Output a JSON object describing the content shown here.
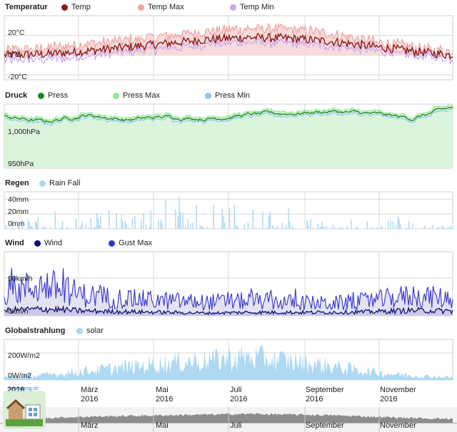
{
  "panels": [
    {
      "id": "temp",
      "title": "Temperatur",
      "legend": [
        {
          "name": "Temp",
          "color": "#8b1a1a"
        },
        {
          "name": "Temp Max",
          "color": "#f2a2a2"
        },
        {
          "name": "Temp Min",
          "color": "#c9a6ef"
        }
      ],
      "yticks": [
        "20°C",
        "0°C",
        "-20°C"
      ]
    },
    {
      "id": "druck",
      "title": "Druck",
      "legend": [
        {
          "name": "Press",
          "color": "#1c8a1c"
        },
        {
          "name": "Press Max",
          "color": "#8fe88f"
        },
        {
          "name": "Press Min",
          "color": "#8fc6e8"
        }
      ],
      "yticks": [
        "1,000hPa",
        "950hPa"
      ]
    },
    {
      "id": "regen",
      "title": "Regen",
      "legend": [
        {
          "name": "Rain Fall",
          "color": "#a9d7f2"
        }
      ],
      "yticks": [
        "40mm",
        "20mm",
        "0mm"
      ]
    },
    {
      "id": "wind",
      "title": "Wind",
      "legend": [
        {
          "name": "Wind",
          "color": "#101070"
        },
        {
          "name": "Gust Max",
          "color": "#3434c8"
        }
      ],
      "yticks": [
        "50km/h",
        "0km/h"
      ]
    },
    {
      "id": "solar",
      "title": "Globalstrahlung",
      "legend": [
        {
          "name": "solar",
          "color": "#a9d7f2"
        }
      ],
      "yticks": [
        "200W/m2",
        "0W/m2"
      ]
    }
  ],
  "xaxis": {
    "labels": [
      {
        "l1": "2016",
        "l2": "",
        "bold": true
      },
      {
        "l1": "März",
        "l2": "2016",
        "bold": false
      },
      {
        "l1": "Mai",
        "l2": "2016",
        "bold": false
      },
      {
        "l1": "Juli",
        "l2": "2016",
        "bold": false
      },
      {
        "l1": "September",
        "l2": "2016",
        "bold": false
      },
      {
        "l1": "November",
        "l2": "2016",
        "bold": false
      }
    ],
    "navigator": [
      "2016",
      "März",
      "Mai",
      "Juli",
      "September",
      "November"
    ]
  },
  "logo_text": "www.ursg.ch",
  "chart_data": [
    {
      "type": "area",
      "title": "Temperatur",
      "x_range": [
        "2016-01-01",
        "2016-12-31"
      ],
      "ylim": [
        -25,
        40
      ],
      "series": [
        {
          "name": "Temp",
          "monthly": [
            0,
            1,
            4,
            8,
            12,
            16,
            18,
            17,
            14,
            9,
            4,
            0
          ]
        },
        {
          "name": "Temp Max",
          "monthly": [
            5,
            7,
            11,
            15,
            20,
            24,
            27,
            26,
            22,
            14,
            8,
            4
          ]
        },
        {
          "name": "Temp Min",
          "monthly": [
            -5,
            -4,
            -1,
            3,
            7,
            11,
            13,
            12,
            9,
            5,
            0,
            -4
          ]
        }
      ]
    },
    {
      "type": "area",
      "title": "Druck",
      "x_range": [
        "2016-01-01",
        "2016-12-31"
      ],
      "ylim": [
        940,
        1030
      ],
      "series": [
        {
          "name": "Press",
          "monthly": [
            1012,
            1005,
            1015,
            1008,
            1012,
            1010,
            1015,
            1017,
            1020,
            1016,
            1010,
            1025
          ]
        },
        {
          "name": "Press Max",
          "monthly": [
            1015,
            1010,
            1018,
            1011,
            1014,
            1012,
            1017,
            1019,
            1022,
            1019,
            1013,
            1028
          ]
        },
        {
          "name": "Press Min",
          "monthly": [
            1008,
            1000,
            1011,
            1005,
            1009,
            1008,
            1013,
            1015,
            1017,
            1013,
            1007,
            1021
          ]
        }
      ]
    },
    {
      "type": "bar",
      "title": "Regen",
      "x_range": [
        "2016-01-01",
        "2016-12-31"
      ],
      "ylim": [
        0,
        50
      ],
      "series": [
        {
          "name": "Rain Fall",
          "monthly_peak": [
            12,
            18,
            10,
            25,
            38,
            30,
            22,
            20,
            12,
            15,
            10,
            5
          ]
        }
      ]
    },
    {
      "type": "area",
      "title": "Wind",
      "x_range": [
        "2016-01-01",
        "2016-12-31"
      ],
      "ylim": [
        0,
        85
      ],
      "series": [
        {
          "name": "Wind",
          "monthly": [
            8,
            10,
            7,
            6,
            5,
            4,
            5,
            5,
            5,
            6,
            8,
            7
          ]
        },
        {
          "name": "Gust Max",
          "monthly": [
            35,
            45,
            30,
            25,
            22,
            20,
            22,
            20,
            18,
            22,
            30,
            25
          ]
        }
      ]
    },
    {
      "type": "area",
      "title": "Globalstrahlung",
      "x_range": [
        "2016-01-01",
        "2016-12-31"
      ],
      "ylim": [
        0,
        300
      ],
      "series": [
        {
          "name": "solar",
          "monthly": [
            30,
            50,
            90,
            130,
            170,
            200,
            230,
            190,
            140,
            80,
            45,
            25
          ]
        }
      ]
    }
  ]
}
